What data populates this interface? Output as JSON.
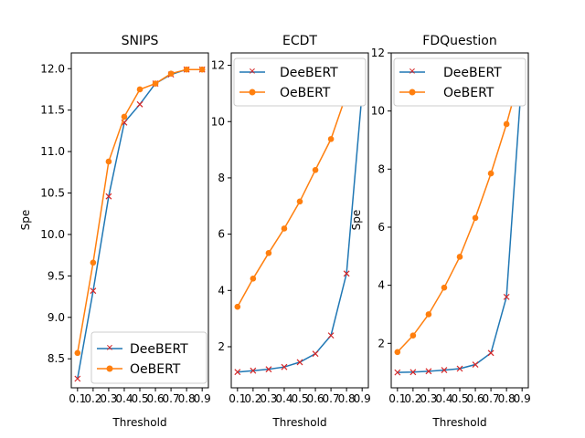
{
  "chart_data": [
    {
      "type": "line",
      "title": "SNIPS",
      "xlabel": "Threshold",
      "ylabel": "Spe",
      "x": [
        0.1,
        0.2,
        0.3,
        0.4,
        0.5,
        0.6,
        0.7,
        0.8,
        0.9
      ],
      "x_tick_labels": [
        "0.1",
        "0.2",
        "0.3",
        "0.4",
        "0.5",
        "0.6",
        "0.7",
        "0.8",
        "0.9"
      ],
      "xlim": [
        0.06,
        0.94
      ],
      "ylim": [
        8.15,
        12.19
      ],
      "y_ticks": [
        8.5,
        9.0,
        9.5,
        10.0,
        10.5,
        11.0,
        11.5,
        12.0
      ],
      "y_tick_labels": [
        "8.5",
        "9.0",
        "9.5",
        "10.0",
        "10.5",
        "11.0",
        "11.5",
        "12.0"
      ],
      "legend_position": "lower-right",
      "series": [
        {
          "name": "DeeBERT",
          "color": "#1f77b4",
          "marker": "x",
          "marker_color": "#d62728",
          "values": [
            8.26,
            9.32,
            10.46,
            11.35,
            11.57,
            11.82,
            11.93,
            11.99,
            11.99
          ]
        },
        {
          "name": "OeBERT",
          "color": "#ff7f0e",
          "marker": "o",
          "marker_color": "#ff7f0e",
          "values": [
            8.57,
            9.66,
            10.88,
            11.42,
            11.75,
            11.82,
            11.94,
            11.99,
            11.99
          ]
        }
      ]
    },
    {
      "type": "line",
      "title": "ECDT",
      "xlabel": "Threshold",
      "ylabel": "",
      "x": [
        0.1,
        0.2,
        0.3,
        0.4,
        0.5,
        0.6,
        0.7,
        0.8,
        0.9
      ],
      "x_tick_labels": [
        "0.1",
        "0.2",
        "0.3",
        "0.4",
        "0.5",
        "0.6",
        "0.7",
        "0.8",
        "0.9"
      ],
      "xlim": [
        0.06,
        0.94
      ],
      "ylim": [
        0.54,
        12.44
      ],
      "y_ticks": [
        2,
        4,
        6,
        8,
        10,
        12
      ],
      "y_tick_labels": [
        "2",
        "4",
        "6",
        "8",
        "10",
        "12"
      ],
      "legend_position": "upper-left",
      "series": [
        {
          "name": "DeeBERT",
          "color": "#1f77b4",
          "marker": "x",
          "marker_color": "#d62728",
          "values": [
            1.1,
            1.15,
            1.2,
            1.28,
            1.45,
            1.75,
            2.4,
            4.6,
            11.05
          ]
        },
        {
          "name": "OeBERT",
          "color": "#ff7f0e",
          "marker": "o",
          "marker_color": "#ff7f0e",
          "values": [
            3.42,
            4.42,
            5.33,
            6.2,
            7.16,
            8.28,
            9.38,
            10.98,
            11.88
          ]
        }
      ]
    },
    {
      "type": "line",
      "title": "FDQuestion",
      "xlabel": "Threshold",
      "ylabel": "Spe",
      "x": [
        0.1,
        0.2,
        0.3,
        0.4,
        0.5,
        0.6,
        0.7,
        0.8,
        0.9
      ],
      "x_tick_labels": [
        "0.1",
        "0.2",
        "0.3",
        "0.4",
        "0.5",
        "0.6",
        "0.7",
        "0.8",
        "0.9"
      ],
      "xlim": [
        0.06,
        0.94
      ],
      "ylim": [
        0.47,
        12.0
      ],
      "y_ticks": [
        2,
        4,
        6,
        8,
        10,
        12
      ],
      "y_tick_labels": [
        "2",
        "4",
        "6",
        "8",
        "10",
        "12"
      ],
      "legend_position": "upper-left",
      "series": [
        {
          "name": "DeeBERT",
          "color": "#1f77b4",
          "marker": "x",
          "marker_color": "#d62728",
          "values": [
            1.0,
            1.01,
            1.04,
            1.08,
            1.13,
            1.27,
            1.67,
            3.6,
            11.3
          ]
        },
        {
          "name": "OeBERT",
          "color": "#ff7f0e",
          "marker": "o",
          "marker_color": "#ff7f0e",
          "values": [
            1.7,
            2.27,
            3.0,
            3.92,
            4.98,
            6.32,
            7.85,
            9.55,
            11.5
          ]
        }
      ]
    }
  ]
}
